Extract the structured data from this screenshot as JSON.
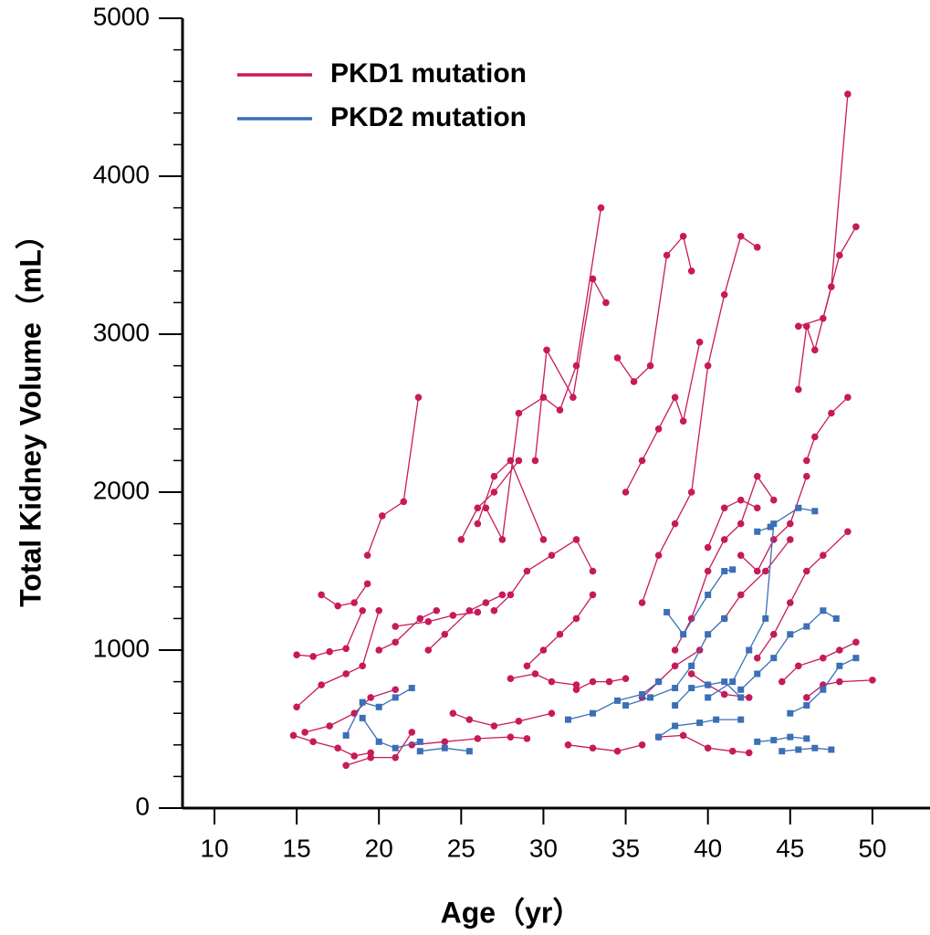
{
  "chart_data": {
    "type": "spaghetti",
    "x_label": "Age（yr）",
    "y_label": "Total Kidney Volume（mL）",
    "xlim": [
      8.06,
      53.5
    ],
    "ylim": [
      0,
      5000
    ],
    "xticks": [
      10,
      15,
      20,
      25,
      30,
      35,
      40,
      45,
      50
    ],
    "yticks": [
      0,
      1000,
      2000,
      3000,
      4000,
      5000
    ],
    "yminorticks": [
      200,
      400,
      600,
      800,
      1200,
      1400,
      1600,
      1800,
      2200,
      2400,
      2600,
      2800,
      3200,
      3400,
      3600,
      3800,
      4200,
      4400,
      4600,
      4800
    ],
    "legend": "upper left",
    "series": [
      {
        "name": "PKD1 mutation",
        "color": "#c8195a",
        "marker": "circle",
        "subjects": [
          {
            "x": [
              19.3,
              20.2,
              21.5,
              22.4
            ],
            "values": [
              1600,
              1850,
              1940,
              2600
            ]
          },
          {
            "x": [
              15,
              16,
              17,
              18,
              19
            ],
            "values": [
              970,
              960,
              990,
              1010,
              1250
            ]
          },
          {
            "x": [
              16.5,
              17.5,
              18.5,
              19.3
            ],
            "values": [
              1350,
              1280,
              1300,
              1420
            ]
          },
          {
            "x": [
              15,
              16.5,
              18,
              19,
              20
            ],
            "values": [
              640,
              780,
              850,
              900,
              1250
            ]
          },
          {
            "x": [
              15.5,
              17,
              18.5,
              19.5,
              21
            ],
            "values": [
              480,
              520,
              600,
              700,
              750
            ]
          },
          {
            "x": [
              14.8,
              16,
              17.5,
              18.5,
              19.5
            ],
            "values": [
              460,
              420,
              380,
              330,
              350
            ]
          },
          {
            "x": [
              18,
              19.5,
              21,
              22
            ],
            "values": [
              270,
              320,
              320,
              480
            ]
          },
          {
            "x": [
              20,
              21,
              22.5,
              23.5
            ],
            "values": [
              1000,
              1050,
              1200,
              1250
            ]
          },
          {
            "x": [
              21,
              23,
              24.5,
              26
            ],
            "values": [
              1150,
              1180,
              1220,
              1240
            ]
          },
          {
            "x": [
              23,
              24,
              25.5,
              26.5,
              27.5
            ],
            "values": [
              1000,
              1100,
              1250,
              1300,
              1350
            ]
          },
          {
            "x": [
              25,
              26,
              27,
              28.5
            ],
            "values": [
              1700,
              1900,
              2000,
              2200
            ]
          },
          {
            "x": [
              26,
              27,
              28,
              30
            ],
            "values": [
              1800,
              2100,
              2200,
              1700
            ]
          },
          {
            "x": [
              26.5,
              27.5,
              28.5,
              30,
              31,
              32,
              33.5
            ],
            "values": [
              1900,
              1700,
              2500,
              2600,
              2520,
              2800,
              3800
            ]
          },
          {
            "x": [
              29.5,
              30.2,
              31.8,
              33,
              33.8
            ],
            "values": [
              2200,
              2900,
              2600,
              3350,
              3200
            ]
          },
          {
            "x": [
              27,
              28,
              29,
              30.5,
              32,
              33
            ],
            "values": [
              1250,
              1350,
              1500,
              1600,
              1700,
              1500
            ]
          },
          {
            "x": [
              24.5,
              25.5,
              27,
              28.5,
              30.5
            ],
            "values": [
              600,
              560,
              520,
              550,
              600
            ]
          },
          {
            "x": [
              22,
              24,
              26,
              28,
              29
            ],
            "values": [
              400,
              420,
              440,
              450,
              440
            ]
          },
          {
            "x": [
              29,
              30,
              31,
              32,
              33
            ],
            "values": [
              900,
              1000,
              1100,
              1200,
              1350
            ]
          },
          {
            "x": [
              31.5,
              33,
              34.5,
              36
            ],
            "values": [
              400,
              380,
              360,
              400
            ]
          },
          {
            "x": [
              34.5,
              35.5,
              36.5,
              37.5,
              38.5,
              39
            ],
            "values": [
              2850,
              2700,
              2800,
              3500,
              3620,
              3400
            ]
          },
          {
            "x": [
              35,
              36,
              37,
              38,
              38.5,
              39.5
            ],
            "values": [
              2000,
              2200,
              2400,
              2600,
              2450,
              2950
            ]
          },
          {
            "x": [
              36,
              37,
              38,
              39,
              40,
              41,
              42,
              43
            ],
            "values": [
              1300,
              1600,
              1800,
              2000,
              2800,
              3250,
              3620,
              3550
            ]
          },
          {
            "x": [
              38,
              39,
              40,
              41,
              42,
              43,
              44
            ],
            "values": [
              1000,
              1200,
              1500,
              1700,
              1800,
              2100,
              1950
            ]
          },
          {
            "x": [
              40,
              41,
              42,
              43
            ],
            "values": [
              1650,
              1900,
              1950,
              1900
            ]
          },
          {
            "x": [
              45.5,
              46,
              46.5,
              47.5,
              48.5
            ],
            "values": [
              2650,
              3050,
              2900,
              3300,
              4520
            ]
          },
          {
            "x": [
              46,
              46.5,
              47.5,
              48.5
            ],
            "values": [
              2200,
              2350,
              2500,
              2600
            ]
          },
          {
            "x": [
              45.5,
              47,
              48,
              49
            ],
            "values": [
              3050,
              3100,
              3500,
              3680
            ]
          },
          {
            "x": [
              42,
              43,
              44,
              45,
              46
            ],
            "values": [
              1600,
              1500,
              1700,
              1800,
              2100
            ]
          },
          {
            "x": [
              43,
              44,
              45,
              46,
              47,
              48.5
            ],
            "values": [
              950,
              1100,
              1300,
              1500,
              1600,
              1750
            ]
          },
          {
            "x": [
              44.5,
              45.5,
              47,
              48,
              49
            ],
            "values": [
              800,
              900,
              950,
              1000,
              1050
            ]
          },
          {
            "x": [
              46,
              47,
              48,
              50
            ],
            "values": [
              700,
              780,
              800,
              810
            ]
          },
          {
            "x": [
              41,
              42,
              43.5,
              45
            ],
            "values": [
              1200,
              1350,
              1500,
              1700
            ]
          },
          {
            "x": [
              36,
              37,
              38,
              39.5
            ],
            "values": [
              700,
              800,
              900,
              1000
            ]
          },
          {
            "x": [
              32,
              33,
              34,
              35
            ],
            "values": [
              750,
              800,
              800,
              820
            ]
          },
          {
            "x": [
              37,
              38.5,
              40,
              41.5,
              42.5
            ],
            "values": [
              450,
              460,
              380,
              360,
              350
            ]
          },
          {
            "x": [
              39,
              40,
              41,
              42.5
            ],
            "values": [
              850,
              780,
              720,
              700
            ]
          },
          {
            "x": [
              28,
              29.5,
              30.5,
              32
            ],
            "values": [
              820,
              850,
              800,
              780
            ]
          }
        ]
      },
      {
        "name": "PKD2 mutation",
        "color": "#3b6fb6",
        "marker": "square",
        "subjects": [
          {
            "x": [
              18,
              19,
              20,
              21,
              22
            ],
            "values": [
              460,
              670,
              640,
              700,
              760
            ]
          },
          {
            "x": [
              19,
              20,
              21,
              22.5
            ],
            "values": [
              570,
              420,
              380,
              420
            ]
          },
          {
            "x": [
              22.5,
              24,
              25.5
            ],
            "values": [
              360,
              380,
              360
            ]
          },
          {
            "x": [
              31.5,
              33,
              34.5,
              36,
              37
            ],
            "values": [
              560,
              600,
              680,
              720,
              800
            ]
          },
          {
            "x": [
              35,
              36.5,
              38,
              39,
              40,
              41
            ],
            "values": [
              650,
              700,
              760,
              900,
              1100,
              1200
            ]
          },
          {
            "x": [
              37.5,
              38.5,
              40,
              41,
              41.5
            ],
            "values": [
              1240,
              1100,
              1350,
              1500,
              1510
            ]
          },
          {
            "x": [
              37,
              38,
              39.5,
              40.5,
              42
            ],
            "values": [
              450,
              520,
              540,
              560,
              560
            ]
          },
          {
            "x": [
              40,
              41.5,
              42.5,
              43.5,
              44,
              45.5,
              46.5
            ],
            "values": [
              700,
              800,
              1000,
              1200,
              1800,
              1900,
              1880
            ]
          },
          {
            "x": [
              43,
              43.8
            ],
            "values": [
              1750,
              1780
            ]
          },
          {
            "x": [
              43,
              44,
              45,
              46
            ],
            "values": [
              420,
              430,
              450,
              440
            ]
          },
          {
            "x": [
              44.5,
              45.5,
              46.5,
              47.5
            ],
            "values": [
              360,
              370,
              380,
              370
            ]
          },
          {
            "x": [
              42,
              43,
              44,
              45,
              46,
              47,
              47.8
            ],
            "values": [
              750,
              850,
              950,
              1100,
              1150,
              1250,
              1200
            ]
          },
          {
            "x": [
              45,
              46,
              47,
              48,
              49
            ],
            "values": [
              600,
              650,
              750,
              900,
              950
            ]
          },
          {
            "x": [
              38,
              39,
              40,
              41,
              42
            ],
            "values": [
              650,
              760,
              780,
              800,
              700
            ]
          }
        ]
      }
    ]
  }
}
